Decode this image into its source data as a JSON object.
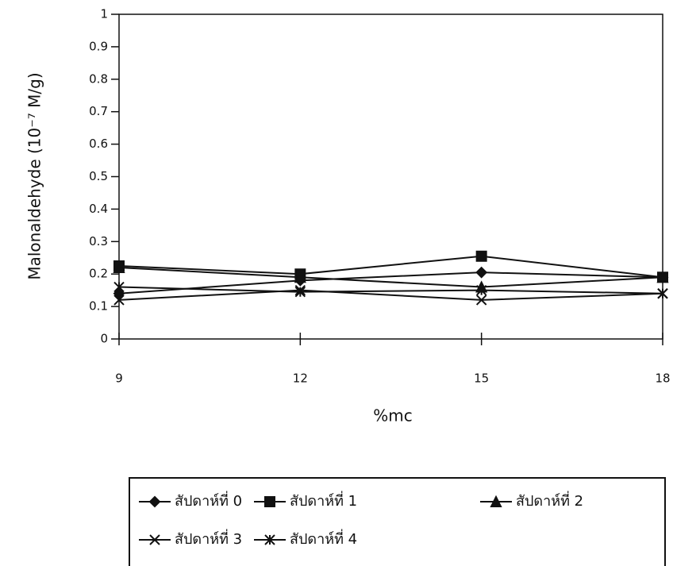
{
  "chart_data": {
    "type": "line",
    "x_label": "%mc",
    "y_label": "Malonaldehyde (10⁻⁷ M/g)",
    "x": [
      9,
      12,
      15,
      18
    ],
    "xlim": [
      9,
      18
    ],
    "xticks": [
      9,
      12,
      15,
      18
    ],
    "ylim": [
      0,
      1
    ],
    "yticks": [
      0,
      0.1,
      0.2,
      0.3,
      0.4,
      0.5,
      0.6,
      0.7,
      0.8,
      0.9,
      1
    ],
    "series": [
      {
        "name": "สัปดาห์ที่ 0",
        "color": "#111111",
        "marker": "diamond",
        "values": [
          0.14,
          0.18,
          0.205,
          0.19
        ]
      },
      {
        "name": "สัปดาห์ที่ 1",
        "color": "#111111",
        "marker": "square",
        "values": [
          0.225,
          0.2,
          0.255,
          0.19
        ]
      },
      {
        "name": "สัปดาห์ที่ 2",
        "color": "#111111",
        "marker": "triangle",
        "values": [
          0.22,
          0.19,
          0.16,
          0.19
        ]
      },
      {
        "name": "สัปดาห์ที่ 3",
        "color": "#111111",
        "marker": "x",
        "values": [
          0.12,
          0.15,
          0.12,
          0.14
        ]
      },
      {
        "name": "สัปดาห์ที่ 4",
        "color": "#111111",
        "marker": "star",
        "values": [
          0.16,
          0.145,
          0.15,
          0.14
        ]
      }
    ]
  }
}
